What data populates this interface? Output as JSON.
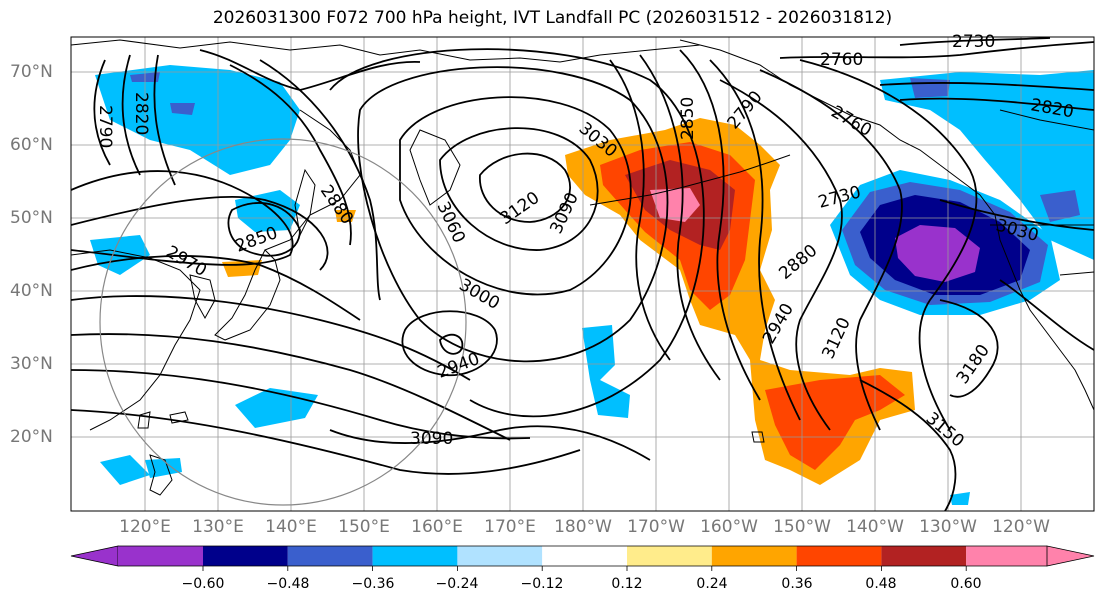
{
  "title": "2026031300 F072 700 hPa height, IVT Landfall PC (2026031512 - 2026031812)",
  "lat_labels": [
    "70°N",
    "60°N",
    "50°N",
    "40°N",
    "30°N",
    "20°N"
  ],
  "lon_labels": [
    "120°E",
    "130°E",
    "140°E",
    "150°E",
    "160°E",
    "170°E",
    "180°W",
    "170°W",
    "160°W",
    "150°W",
    "140°W",
    "130°W",
    "120°W"
  ],
  "contour_labels": [
    "2730",
    "2760",
    "2790",
    "2820",
    "2850",
    "2880",
    "3030",
    "3060",
    "3090",
    "3120",
    "3000",
    "2940",
    "2970",
    "3090",
    "3150",
    "3180",
    "2760",
    "2730",
    "2790",
    "2820",
    "3030",
    "2880",
    "2940",
    "3120",
    "2850"
  ],
  "colorbar": {
    "ticks": [
      "−0.60",
      "−0.48",
      "−0.36",
      "−0.24",
      "−0.12",
      "0.12",
      "0.24",
      "0.36",
      "0.48",
      "0.60"
    ],
    "colors": [
      "#9932CC",
      "#00008B",
      "#3A5FCD",
      "#00BFFF",
      "#B0E2FF",
      "#FFFFFF",
      "#FFEC8B",
      "#FFA500",
      "#FF4500",
      "#B22222",
      "#FF82AB"
    ]
  }
}
